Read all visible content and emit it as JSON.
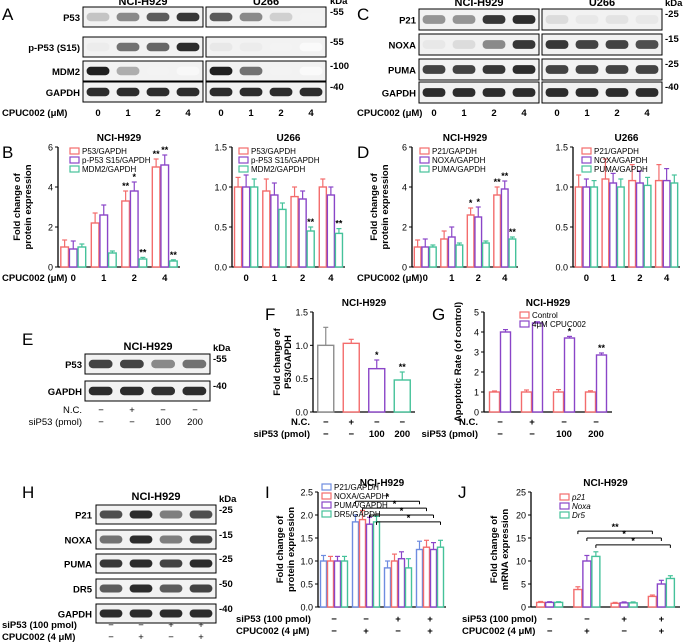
{
  "panel_letters": [
    "A",
    "B",
    "C",
    "D",
    "E",
    "F",
    "G",
    "H",
    "I",
    "J"
  ],
  "common": {
    "kda": "kDa",
    "cpuc_label": "CPUC002 (μM)",
    "doses": [
      "0",
      "1",
      "2",
      "4"
    ],
    "nc_label": "N.C.",
    "sip53_pmol": "siP53 (pmol)",
    "sip53_100": "siP53 (100 pmol)",
    "cpuc_4um": "CPUC002 (4 μM)",
    "minus": "−",
    "plus": "+",
    "ytitle_protein": [
      "Fold change of",
      "protein expression"
    ],
    "ytitle_p53": [
      "Fold change of",
      "P53/GAPDH"
    ],
    "ytitle_apop": "Apoptotic Rate (of control)",
    "ytitle_mrna": [
      "Fold change of",
      "mRNA expression"
    ],
    "cell_h929": "NCI-H929",
    "cell_u266": "U266"
  },
  "colors": {
    "red": "#F36C6C",
    "purple": "#8A45C8",
    "green": "#45C29A",
    "blue": "#6E8CE0",
    "grey": "#8C8C8C"
  },
  "panelA": {
    "cells": [
      "NCI-H929",
      "U266"
    ],
    "blots": [
      {
        "label": "P53",
        "kda": "-55"
      },
      {
        "label": "p-P53 (S15)",
        "kda": "-55"
      },
      {
        "label": "MDM2",
        "kda": "-100"
      },
      {
        "label": "GAPDH",
        "kda": "-40"
      }
    ]
  },
  "panelC": {
    "cells": [
      "NCI-H929",
      "U266"
    ],
    "blots": [
      {
        "label": "P21",
        "kda": "-25"
      },
      {
        "label": "NOXA",
        "kda": "-15"
      },
      {
        "label": "PUMA",
        "kda": "-25"
      },
      {
        "label": "GAPDH",
        "kda": "-40"
      }
    ]
  },
  "panelE": {
    "title": "NCI-H929",
    "blots": [
      {
        "label": "P53",
        "kda": "-55"
      },
      {
        "label": "GAPDH",
        "kda": "-40"
      }
    ],
    "nc_signs": [
      "−",
      "+",
      "−",
      "−"
    ],
    "sip53_values": [
      "−",
      "−",
      "100",
      "200"
    ]
  },
  "panelH": {
    "title": "NCI-H929",
    "blots": [
      {
        "label": "P21",
        "kda": "-25"
      },
      {
        "label": "NOXA",
        "kda": "-15"
      },
      {
        "label": "PUMA",
        "kda": "-25"
      },
      {
        "label": "DR5",
        "kda": "-50"
      },
      {
        "label": "GAPDH",
        "kda": "-40"
      }
    ],
    "sip53_signs": [
      "−",
      "−",
      "+",
      "+"
    ],
    "cpuc_signs": [
      "−",
      "+",
      "−",
      "+"
    ]
  },
  "chart_data": [
    {
      "panel": "B-left",
      "type": "bar",
      "title": "NCI-H929",
      "categories": [
        "0",
        "1",
        "2",
        "4"
      ],
      "ylim": [
        0,
        6
      ],
      "yticks": [
        0,
        2,
        4,
        6
      ],
      "series": [
        {
          "name": "P53/GAPDH",
          "values": [
            1.0,
            2.2,
            3.3,
            5.0
          ],
          "err": [
            0.35,
            0.5,
            0.5,
            0.4
          ]
        },
        {
          "name": "p-P53 S15/GAPDH",
          "values": [
            0.9,
            2.6,
            3.8,
            5.1
          ],
          "err": [
            0.4,
            0.5,
            0.45,
            0.5
          ]
        },
        {
          "name": "MDM2/GAPDH",
          "values": [
            1.0,
            0.7,
            0.4,
            0.3
          ],
          "err": [
            0.15,
            0.1,
            0.08,
            0.06
          ]
        }
      ],
      "stars": [
        {
          "cat": 2,
          "series": 0,
          "text": "**"
        },
        {
          "cat": 2,
          "series": 1,
          "text": "*"
        },
        {
          "cat": 2,
          "series": 2,
          "text": "**"
        },
        {
          "cat": 3,
          "series": 0,
          "text": "**"
        },
        {
          "cat": 3,
          "series": 1,
          "text": "**"
        },
        {
          "cat": 3,
          "series": 2,
          "text": "**"
        }
      ]
    },
    {
      "panel": "B-right",
      "type": "bar",
      "title": "U266",
      "categories": [
        "0",
        "1",
        "2",
        "4"
      ],
      "ylim": [
        0,
        1.5
      ],
      "yticks": [
        0,
        0.5,
        1.0,
        1.5
      ],
      "series": [
        {
          "name": "P53/GAPDH",
          "values": [
            1.0,
            0.95,
            0.88,
            1.0
          ],
          "err": [
            0.12,
            0.15,
            0.12,
            0.1
          ]
        },
        {
          "name": "p-P53 S15/GAPDH",
          "values": [
            1.0,
            0.9,
            0.85,
            0.9
          ],
          "err": [
            0.15,
            0.15,
            0.1,
            0.1
          ]
        },
        {
          "name": "MDM2/GAPDH",
          "values": [
            1.0,
            0.72,
            0.45,
            0.42
          ],
          "err": [
            0.1,
            0.08,
            0.05,
            0.06
          ]
        }
      ],
      "stars": [
        {
          "cat": 2,
          "series": 2,
          "text": "**"
        },
        {
          "cat": 3,
          "series": 2,
          "text": "**"
        }
      ]
    },
    {
      "panel": "D-left",
      "type": "bar",
      "title": "NCI-H929",
      "categories": [
        "0",
        "1",
        "2",
        "4"
      ],
      "ylim": [
        0,
        6
      ],
      "yticks": [
        0,
        2,
        4,
        6
      ],
      "series": [
        {
          "name": "P21/GAPDH",
          "values": [
            1.0,
            1.4,
            2.6,
            3.6
          ],
          "err": [
            0.35,
            0.4,
            0.35,
            0.4
          ]
        },
        {
          "name": "NOXA/GAPDH",
          "values": [
            1.0,
            1.5,
            2.5,
            3.9
          ],
          "err": [
            0.4,
            0.5,
            0.5,
            0.4
          ]
        },
        {
          "name": "PUMA/GAPDH",
          "values": [
            1.0,
            1.1,
            1.2,
            1.4
          ],
          "err": [
            0.1,
            0.1,
            0.1,
            0.1
          ]
        }
      ],
      "stars": [
        {
          "cat": 2,
          "series": 0,
          "text": "*"
        },
        {
          "cat": 2,
          "series": 1,
          "text": "*"
        },
        {
          "cat": 3,
          "series": 0,
          "text": "**"
        },
        {
          "cat": 3,
          "series": 1,
          "text": "**"
        },
        {
          "cat": 3,
          "series": 2,
          "text": "**"
        }
      ]
    },
    {
      "panel": "D-right",
      "type": "bar",
      "title": "U266",
      "categories": [
        "0",
        "1",
        "2",
        "4"
      ],
      "ylim": [
        0,
        1.5
      ],
      "yticks": [
        0,
        0.5,
        1.0,
        1.5
      ],
      "series": [
        {
          "name": "P21/GAPDH",
          "values": [
            1.0,
            1.1,
            1.08,
            1.08
          ],
          "err": [
            0.15,
            0.25,
            0.2,
            0.2
          ]
        },
        {
          "name": "NOXA/GAPDH",
          "values": [
            1.0,
            1.05,
            1.05,
            1.08
          ],
          "err": [
            0.1,
            0.12,
            0.15,
            0.15
          ]
        },
        {
          "name": "PUMA/GAPDH",
          "values": [
            1.0,
            1.0,
            1.02,
            1.05
          ],
          "err": [
            0.08,
            0.1,
            0.1,
            0.1
          ]
        }
      ],
      "stars": []
    },
    {
      "panel": "F",
      "type": "bar",
      "title": "NCI-H929",
      "categories": [
        "1",
        "2",
        "3",
        "4"
      ],
      "ylim": [
        0,
        1.5
      ],
      "yticks": [
        0,
        0.5,
        1.0,
        1.5
      ],
      "series": [
        {
          "values": [
            1.0,
            1.03,
            0.65,
            0.48
          ],
          "err": [
            0.27,
            0.06,
            0.13,
            0.12
          ],
          "colors": [
            "#8C8C8C",
            "#F36C6C",
            "#8A45C8",
            "#45C29A"
          ]
        }
      ],
      "stars": [
        {
          "cat": 2,
          "series": 0,
          "text": "*"
        },
        {
          "cat": 3,
          "series": 0,
          "text": "**"
        }
      ]
    },
    {
      "panel": "G",
      "type": "bar",
      "title": "NCI-H929",
      "categories": [
        "1",
        "2",
        "3",
        "4"
      ],
      "ylim": [
        0,
        5
      ],
      "yticks": [
        0,
        1,
        2,
        3,
        4,
        5
      ],
      "series": [
        {
          "name": "Control",
          "values": [
            1.0,
            1.0,
            1.0,
            1.0
          ],
          "err": [
            0.05,
            0.1,
            0.12,
            0.06
          ]
        },
        {
          "name": "4μM CPUC002",
          "values": [
            4.0,
            4.45,
            3.7,
            2.85
          ],
          "err": [
            0.12,
            0.06,
            0.08,
            0.1
          ]
        }
      ],
      "stars": [
        {
          "cat": 2,
          "series": 1,
          "text": "*"
        },
        {
          "cat": 3,
          "series": 1,
          "text": "**"
        }
      ]
    },
    {
      "panel": "I",
      "type": "bar",
      "title": "NCI-H929",
      "categories": [
        "1",
        "2",
        "3",
        "4"
      ],
      "ylim": [
        0,
        2.5
      ],
      "yticks": [
        0,
        0.5,
        1.0,
        1.5,
        2.0,
        2.5
      ],
      "series": [
        {
          "name": "P21/GAPDH",
          "values": [
            1.0,
            1.85,
            0.85,
            1.25
          ],
          "err": [
            0.12,
            0.15,
            0.15,
            0.18
          ]
        },
        {
          "name": "NOXA/GAPDH",
          "values": [
            1.0,
            1.9,
            1.0,
            1.3
          ],
          "err": [
            0.1,
            0.2,
            0.15,
            0.15
          ]
        },
        {
          "name": "PUMA/GAPDH",
          "values": [
            1.0,
            1.8,
            1.05,
            1.25
          ],
          "err": [
            0.1,
            0.15,
            0.15,
            0.15
          ]
        },
        {
          "name": "DR5/GAPDH",
          "values": [
            1.0,
            1.85,
            0.85,
            1.3
          ],
          "err": [
            0.1,
            0.12,
            0.2,
            0.15
          ]
        }
      ],
      "brackets": [
        {
          "y": 2.3,
          "text": "*"
        },
        {
          "y": 2.15,
          "text": "*"
        },
        {
          "y": 2.0,
          "text": "*"
        },
        {
          "y": 1.85,
          "text": "*"
        }
      ]
    },
    {
      "panel": "J",
      "type": "bar",
      "title": "NCI-H929",
      "categories": [
        "1",
        "2",
        "3",
        "4"
      ],
      "ylim": [
        0,
        25
      ],
      "yticks": [
        0,
        5,
        10,
        15,
        20,
        25
      ],
      "series": [
        {
          "name": "p21",
          "values": [
            1.0,
            3.8,
            0.8,
            2.3
          ],
          "err": [
            0.2,
            0.6,
            0.2,
            0.3
          ]
        },
        {
          "name": "Noxa",
          "values": [
            1.0,
            10.0,
            0.9,
            5.0
          ],
          "err": [
            0.15,
            1.2,
            0.2,
            0.8
          ]
        },
        {
          "name": "Dr5",
          "values": [
            1.0,
            11.0,
            0.9,
            6.2
          ],
          "err": [
            0.15,
            1.0,
            0.2,
            0.6
          ]
        }
      ],
      "brackets": [
        {
          "y": 16.5,
          "text": "**"
        },
        {
          "y": 15.0,
          "text": "*"
        },
        {
          "y": 13.5,
          "text": "*"
        }
      ]
    }
  ]
}
